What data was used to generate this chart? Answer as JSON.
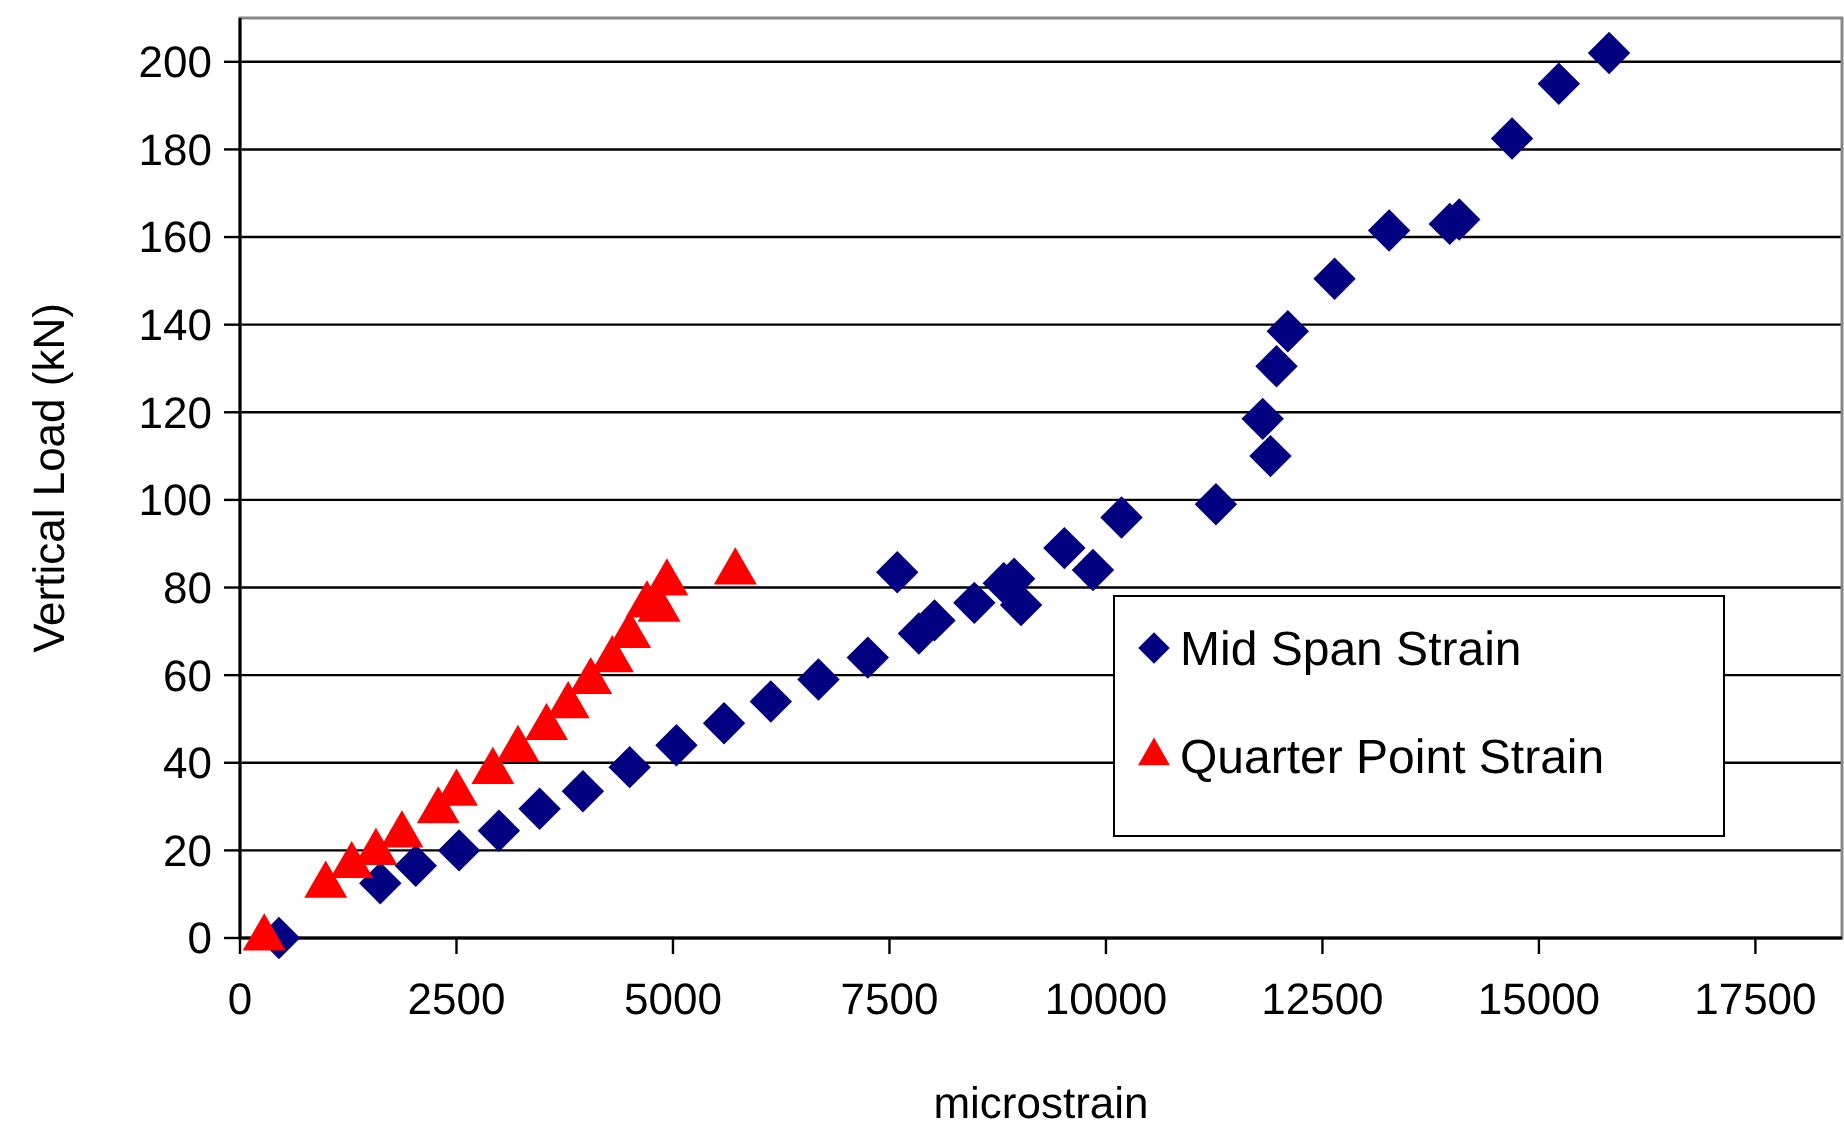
{
  "chart_data": {
    "type": "scatter",
    "xlabel": "microstrain",
    "ylabel": "Vertical Load (kN)",
    "xlim": [
      0,
      18500
    ],
    "xticks": [
      0,
      2500,
      5000,
      7500,
      10000,
      12500,
      15000,
      17500
    ],
    "ylim": [
      0,
      210
    ],
    "yticks": [
      0,
      20,
      40,
      60,
      80,
      100,
      120,
      140,
      160,
      180,
      200
    ],
    "grid": "y",
    "legend": "right",
    "series": [
      {
        "name": "Mid Span Strain",
        "color": "#000080",
        "marker": "diamond",
        "x": [
          450,
          1620,
          2030,
          2530,
          2990,
          3460,
          3960,
          4500,
          5040,
          5590,
          6130,
          6680,
          7250,
          7590,
          7840,
          8020,
          8480,
          8820,
          8940,
          9020,
          9520,
          9850,
          10180,
          11270,
          11900,
          11810,
          11970,
          12100,
          12640,
          13270,
          13970,
          14080,
          14690,
          15230,
          15810
        ],
        "values": [
          0,
          12.5,
          16.5,
          20,
          24.5,
          29.5,
          33.5,
          39,
          44,
          49,
          54,
          59,
          64,
          83.5,
          69.5,
          72.5,
          76.5,
          81,
          82,
          76,
          89,
          84,
          96,
          99,
          110,
          118.5,
          130.5,
          138.5,
          150.5,
          161.5,
          163,
          164,
          182.5,
          195,
          202
        ]
      },
      {
        "name": "Quarter Point Strain",
        "color": "#ff0000",
        "marker": "triangle",
        "x": [
          280,
          990,
          1290,
          1570,
          1870,
          2290,
          2500,
          2920,
          3210,
          3540,
          3790,
          4050,
          4300,
          4500,
          4700,
          4840,
          4930,
          5720
        ],
        "values": [
          0,
          12,
          16.5,
          19.5,
          23.5,
          29,
          33,
          38,
          43,
          48,
          53,
          58.5,
          63.5,
          69,
          76,
          75,
          81,
          83.5
        ]
      }
    ]
  }
}
